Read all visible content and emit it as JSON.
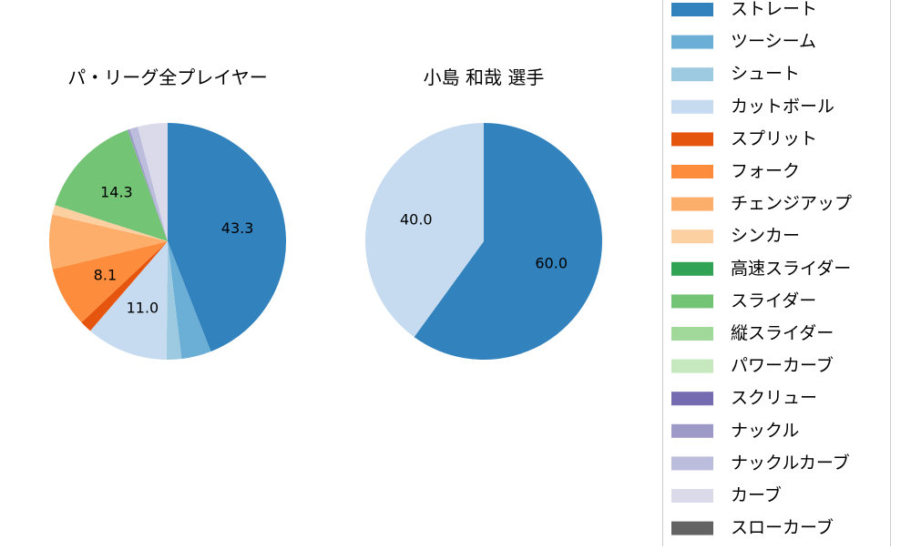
{
  "chart_data": [
    {
      "type": "pie",
      "title": "パ・リーグ全プレイヤー",
      "categories": [
        "ストレート",
        "ツーシーム",
        "シュート",
        "カットボール",
        "スプリット",
        "フォーク",
        "チェンジアップ",
        "シンカー",
        "高速スライダー",
        "スライダー",
        "縦スライダー",
        "パワーカーブ",
        "スクリュー",
        "ナックル",
        "ナックルカーブ",
        "カーブ",
        "スローカーブ"
      ],
      "values": [
        43.3,
        4.0,
        2.0,
        11.0,
        1.6,
        8.1,
        7.3,
        1.3,
        0.0,
        14.3,
        0.0,
        0.0,
        0.0,
        0.3,
        1.1,
        4.0,
        0.0
      ],
      "data_labels": [
        "43.3",
        "",
        "",
        "11.0",
        "",
        "8.1",
        "",
        "",
        "",
        "14.3",
        "",
        "",
        "",
        "",
        "",
        "",
        ""
      ]
    },
    {
      "type": "pie",
      "title": "小島 和哉  選手",
      "categories": [
        "ストレート",
        "ツーシーム",
        "シュート",
        "カットボール",
        "スプリット",
        "フォーク",
        "チェンジアップ",
        "シンカー",
        "高速スライダー",
        "スライダー",
        "縦スライダー",
        "パワーカーブ",
        "スクリュー",
        "ナックル",
        "ナックルカーブ",
        "カーブ",
        "スローカーブ"
      ],
      "values": [
        60.0,
        0,
        0,
        40.0,
        0,
        0,
        0,
        0,
        0,
        0,
        0,
        0,
        0,
        0,
        0,
        0,
        0
      ],
      "data_labels": [
        "60.0",
        "",
        "",
        "40.0",
        "",
        "",
        "",
        "",
        "",
        "",
        "",
        "",
        "",
        "",
        "",
        "",
        ""
      ]
    }
  ],
  "legend": {
    "placement": "right",
    "items": [
      {
        "label": "ストレート",
        "color": "#3182bd"
      },
      {
        "label": "ツーシーム",
        "color": "#6baed6"
      },
      {
        "label": "シュート",
        "color": "#9ecae1"
      },
      {
        "label": "カットボール",
        "color": "#c6dbef"
      },
      {
        "label": "スプリット",
        "color": "#e6550d"
      },
      {
        "label": "フォーク",
        "color": "#fd8d3c"
      },
      {
        "label": "チェンジアップ",
        "color": "#fdae6b"
      },
      {
        "label": "シンカー",
        "color": "#fdd0a2"
      },
      {
        "label": "高速スライダー",
        "color": "#31a354"
      },
      {
        "label": "スライダー",
        "color": "#74c476"
      },
      {
        "label": "縦スライダー",
        "color": "#a1d99b"
      },
      {
        "label": "パワーカーブ",
        "color": "#c7e9c0"
      },
      {
        "label": "スクリュー",
        "color": "#756bb1"
      },
      {
        "label": "ナックル",
        "color": "#9e9ac8"
      },
      {
        "label": "ナックルカーブ",
        "color": "#bcbddc"
      },
      {
        "label": "カーブ",
        "color": "#dadaeb"
      },
      {
        "label": "スローカーブ",
        "color": "#636363"
      }
    ]
  }
}
